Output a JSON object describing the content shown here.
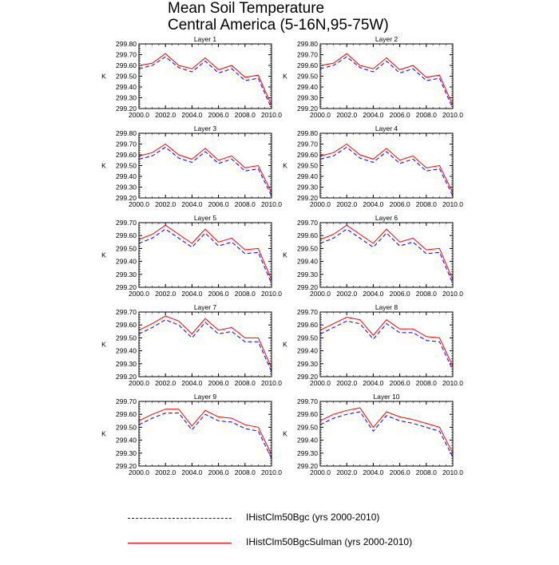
{
  "title": {
    "line1": "Mean Soil Temperature",
    "line2": "Central America (5-16N,95-75W)"
  },
  "legend": {
    "items": [
      {
        "label": "IHistClm50Bgc (yrs 2000-2010)",
        "color": "#0000ff",
        "style": "dashed"
      },
      {
        "label": "IHistClm50BgcSulman (yrs 2000-2010)",
        "color": "#ff0000",
        "style": "solid"
      }
    ]
  },
  "chart_data": [
    {
      "type": "line",
      "title": "Layer 1",
      "ylabel": "K",
      "x": [
        2000,
        2001,
        2002,
        2003,
        2004,
        2005,
        2006,
        2007,
        2008,
        2009,
        2010
      ],
      "xticks": [
        "2000.0",
        "2002.0",
        "2004.0",
        "2006.0",
        "2008.0",
        "2010.0"
      ],
      "yticks": [
        "299.20",
        "299.30",
        "299.40",
        "299.50",
        "299.60",
        "299.70",
        "299.80"
      ],
      "ylim": [
        299.2,
        299.8
      ],
      "series": [
        {
          "name": "IHistClm50Bgc (yrs 2000-2010)",
          "color": "#0000ff",
          "values": [
            299.57,
            299.6,
            299.68,
            299.58,
            299.54,
            299.64,
            299.53,
            299.57,
            299.46,
            299.48,
            299.2
          ]
        },
        {
          "name": "IHistClm50BgcSulman (yrs 2000-2010)",
          "color": "#ff0000",
          "values": [
            299.6,
            299.62,
            299.71,
            299.6,
            299.57,
            299.67,
            299.56,
            299.6,
            299.49,
            299.51,
            299.23
          ]
        }
      ]
    },
    {
      "type": "line",
      "title": "Layer 2",
      "ylabel": "K",
      "x": [
        2000,
        2001,
        2002,
        2003,
        2004,
        2005,
        2006,
        2007,
        2008,
        2009,
        2010
      ],
      "xticks": [
        "2000.0",
        "2002.0",
        "2004.0",
        "2006.0",
        "2008.0",
        "2010.0"
      ],
      "yticks": [
        "299.20",
        "299.30",
        "299.40",
        "299.50",
        "299.60",
        "299.70",
        "299.80"
      ],
      "ylim": [
        299.2,
        299.8
      ],
      "series": [
        {
          "name": "IHistClm50Bgc (yrs 2000-2010)",
          "color": "#0000ff",
          "values": [
            299.57,
            299.6,
            299.68,
            299.58,
            299.54,
            299.64,
            299.53,
            299.57,
            299.46,
            299.48,
            299.2
          ]
        },
        {
          "name": "IHistClm50BgcSulman (yrs 2000-2010)",
          "color": "#ff0000",
          "values": [
            299.6,
            299.62,
            299.71,
            299.6,
            299.57,
            299.67,
            299.56,
            299.6,
            299.49,
            299.51,
            299.23
          ]
        }
      ]
    },
    {
      "type": "line",
      "title": "Layer 3",
      "ylabel": "K",
      "x": [
        2000,
        2001,
        2002,
        2003,
        2004,
        2005,
        2006,
        2007,
        2008,
        2009,
        2010
      ],
      "xticks": [
        "2000.0",
        "2002.0",
        "2004.0",
        "2006.0",
        "2008.0",
        "2010.0"
      ],
      "yticks": [
        "299.20",
        "299.30",
        "299.40",
        "299.50",
        "299.60",
        "299.70",
        "299.80"
      ],
      "ylim": [
        299.2,
        299.8
      ],
      "series": [
        {
          "name": "IHistClm50Bgc (yrs 2000-2010)",
          "color": "#0000ff",
          "values": [
            299.56,
            299.59,
            299.67,
            299.57,
            299.53,
            299.63,
            299.52,
            299.56,
            299.45,
            299.47,
            299.22
          ]
        },
        {
          "name": "IHistClm50BgcSulman (yrs 2000-2010)",
          "color": "#ff0000",
          "values": [
            299.59,
            299.62,
            299.7,
            299.6,
            299.56,
            299.66,
            299.55,
            299.59,
            299.48,
            299.5,
            299.25
          ]
        }
      ]
    },
    {
      "type": "line",
      "title": "Layer 4",
      "ylabel": "K",
      "x": [
        2000,
        2001,
        2002,
        2003,
        2004,
        2005,
        2006,
        2007,
        2008,
        2009,
        2010
      ],
      "xticks": [
        "2000.0",
        "2002.0",
        "2004.0",
        "2006.0",
        "2008.0",
        "2010.0"
      ],
      "yticks": [
        "299.20",
        "299.30",
        "299.40",
        "299.50",
        "299.60",
        "299.70",
        "299.80"
      ],
      "ylim": [
        299.2,
        299.8
      ],
      "series": [
        {
          "name": "IHistClm50Bgc (yrs 2000-2010)",
          "color": "#0000ff",
          "values": [
            299.56,
            299.59,
            299.67,
            299.57,
            299.53,
            299.63,
            299.52,
            299.56,
            299.45,
            299.47,
            299.22
          ]
        },
        {
          "name": "IHistClm50BgcSulman (yrs 2000-2010)",
          "color": "#ff0000",
          "values": [
            299.59,
            299.62,
            299.7,
            299.6,
            299.56,
            299.66,
            299.55,
            299.59,
            299.48,
            299.5,
            299.25
          ]
        }
      ]
    },
    {
      "type": "line",
      "title": "Layer 5",
      "ylabel": "K",
      "x": [
        2000,
        2001,
        2002,
        2003,
        2004,
        2005,
        2006,
        2007,
        2008,
        2009,
        2010
      ],
      "xticks": [
        "2000.0",
        "2002.0",
        "2004.0",
        "2006.0",
        "2008.0",
        "2010.0"
      ],
      "yticks": [
        "299.20",
        "299.30",
        "299.40",
        "299.50",
        "299.60",
        "299.70"
      ],
      "ylim": [
        299.2,
        299.7
      ],
      "series": [
        {
          "name": "IHistClm50Bgc (yrs 2000-2010)",
          "color": "#0000ff",
          "values": [
            299.54,
            299.58,
            299.65,
            299.58,
            299.51,
            299.62,
            299.52,
            299.55,
            299.46,
            299.47,
            299.23
          ]
        },
        {
          "name": "IHistClm50BgcSulman (yrs 2000-2010)",
          "color": "#ff0000",
          "values": [
            299.57,
            299.61,
            299.68,
            299.61,
            299.54,
            299.65,
            299.55,
            299.58,
            299.49,
            299.5,
            299.26
          ]
        }
      ]
    },
    {
      "type": "line",
      "title": "Layer 6",
      "ylabel": "K",
      "x": [
        2000,
        2001,
        2002,
        2003,
        2004,
        2005,
        2006,
        2007,
        2008,
        2009,
        2010
      ],
      "xticks": [
        "2000.0",
        "2002.0",
        "2004.0",
        "2006.0",
        "2008.0",
        "2010.0"
      ],
      "yticks": [
        "299.20",
        "299.30",
        "299.40",
        "299.50",
        "299.60",
        "299.70"
      ],
      "ylim": [
        299.2,
        299.7
      ],
      "series": [
        {
          "name": "IHistClm50Bgc (yrs 2000-2010)",
          "color": "#0000ff",
          "values": [
            299.54,
            299.58,
            299.65,
            299.58,
            299.51,
            299.62,
            299.52,
            299.55,
            299.46,
            299.47,
            299.23
          ]
        },
        {
          "name": "IHistClm50BgcSulman (yrs 2000-2010)",
          "color": "#ff0000",
          "values": [
            299.57,
            299.61,
            299.68,
            299.61,
            299.54,
            299.65,
            299.55,
            299.58,
            299.49,
            299.5,
            299.26
          ]
        }
      ]
    },
    {
      "type": "line",
      "title": "Layer 7",
      "ylabel": "K",
      "x": [
        2000,
        2001,
        2002,
        2003,
        2004,
        2005,
        2006,
        2007,
        2008,
        2009,
        2010
      ],
      "xticks": [
        "2000.0",
        "2002.0",
        "2004.0",
        "2006.0",
        "2008.0",
        "2010.0"
      ],
      "yticks": [
        "299.20",
        "299.30",
        "299.40",
        "299.50",
        "299.60",
        "299.70"
      ],
      "ylim": [
        299.2,
        299.7
      ],
      "series": [
        {
          "name": "IHistClm50Bgc (yrs 2000-2010)",
          "color": "#0000ff",
          "values": [
            299.53,
            299.58,
            299.64,
            299.6,
            299.5,
            299.62,
            299.53,
            299.55,
            299.47,
            299.47,
            299.24
          ]
        },
        {
          "name": "IHistClm50BgcSulman (yrs 2000-2010)",
          "color": "#ff0000",
          "values": [
            299.56,
            299.61,
            299.67,
            299.63,
            299.53,
            299.65,
            299.56,
            299.58,
            299.5,
            299.5,
            299.27
          ]
        }
      ]
    },
    {
      "type": "line",
      "title": "Layer 8",
      "ylabel": "K",
      "x": [
        2000,
        2001,
        2002,
        2003,
        2004,
        2005,
        2006,
        2007,
        2008,
        2009,
        2010
      ],
      "xticks": [
        "2000.0",
        "2002.0",
        "2004.0",
        "2006.0",
        "2008.0",
        "2010.0"
      ],
      "yticks": [
        "299.20",
        "299.30",
        "299.40",
        "299.50",
        "299.60",
        "299.70"
      ],
      "ylim": [
        299.2,
        299.7
      ],
      "series": [
        {
          "name": "IHistClm50Bgc (yrs 2000-2010)",
          "color": "#0000ff",
          "values": [
            299.53,
            299.58,
            299.63,
            299.61,
            299.49,
            299.61,
            299.54,
            299.54,
            299.48,
            299.47,
            299.25
          ]
        },
        {
          "name": "IHistClm50BgcSulman (yrs 2000-2010)",
          "color": "#ff0000",
          "values": [
            299.56,
            299.61,
            299.66,
            299.64,
            299.52,
            299.64,
            299.57,
            299.57,
            299.51,
            299.5,
            299.28
          ]
        }
      ]
    },
    {
      "type": "line",
      "title": "Layer 9",
      "ylabel": "K",
      "x": [
        2000,
        2001,
        2002,
        2003,
        2004,
        2005,
        2006,
        2007,
        2008,
        2009,
        2010
      ],
      "xticks": [
        "2000.0",
        "2002.0",
        "2004.0",
        "2006.0",
        "2008.0",
        "2010.0"
      ],
      "yticks": [
        "299.20",
        "299.30",
        "299.40",
        "299.50",
        "299.60",
        "299.70"
      ],
      "ylim": [
        299.2,
        299.7
      ],
      "series": [
        {
          "name": "IHistClm50Bgc (yrs 2000-2010)",
          "color": "#0000ff",
          "values": [
            299.52,
            299.57,
            299.61,
            299.61,
            299.48,
            299.6,
            299.55,
            299.54,
            299.49,
            299.47,
            299.26
          ]
        },
        {
          "name": "IHistClm50BgcSulman (yrs 2000-2010)",
          "color": "#ff0000",
          "values": [
            299.55,
            299.6,
            299.64,
            299.64,
            299.51,
            299.63,
            299.58,
            299.57,
            299.52,
            299.5,
            299.29
          ]
        }
      ]
    },
    {
      "type": "line",
      "title": "Layer 10",
      "ylabel": "K",
      "x": [
        2000,
        2001,
        2002,
        2003,
        2004,
        2005,
        2006,
        2007,
        2008,
        2009,
        2010
      ],
      "xticks": [
        "2000.0",
        "2002.0",
        "2004.0",
        "2006.0",
        "2008.0",
        "2010.0"
      ],
      "yticks": [
        "299.20",
        "299.30",
        "299.40",
        "299.50",
        "299.60",
        "299.70"
      ],
      "ylim": [
        299.2,
        299.7
      ],
      "series": [
        {
          "name": "IHistClm50Bgc (yrs 2000-2010)",
          "color": "#0000ff",
          "values": [
            299.52,
            299.57,
            299.6,
            299.62,
            299.47,
            299.59,
            299.55,
            299.53,
            299.5,
            299.47,
            299.27
          ]
        },
        {
          "name": "IHistClm50BgcSulman (yrs 2000-2010)",
          "color": "#ff0000",
          "values": [
            299.55,
            299.6,
            299.63,
            299.65,
            299.5,
            299.62,
            299.58,
            299.56,
            299.53,
            299.5,
            299.3
          ]
        }
      ]
    }
  ]
}
